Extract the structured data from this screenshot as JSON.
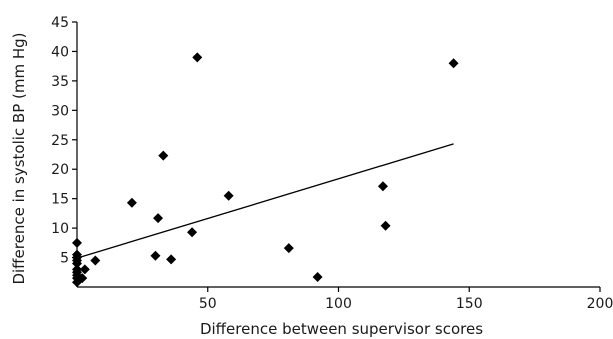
{
  "chart_data": {
    "type": "scatter",
    "title": "",
    "xlabel": "Difference between supervisor scores",
    "ylabel": "Difference in systolic BP (mm Hg)",
    "xlim": [
      0,
      200
    ],
    "ylim": [
      0,
      45
    ],
    "xticks": [
      50,
      100,
      150,
      200
    ],
    "yticks": [
      5,
      10,
      15,
      20,
      25,
      30,
      35,
      40,
      45
    ],
    "grid": false,
    "legend": "none",
    "marker": "diamond",
    "color": "#000000",
    "points": [
      {
        "x": 0,
        "y": 7.5
      },
      {
        "x": 0,
        "y": 5.5
      },
      {
        "x": 0,
        "y": 5.0
      },
      {
        "x": 0,
        "y": 4.5
      },
      {
        "x": 0,
        "y": 4.0
      },
      {
        "x": 0,
        "y": 3.0
      },
      {
        "x": 0,
        "y": 2.5
      },
      {
        "x": 0,
        "y": 2.0
      },
      {
        "x": 0,
        "y": 1.5
      },
      {
        "x": 0,
        "y": 0.8
      },
      {
        "x": 2,
        "y": 1.5
      },
      {
        "x": 3,
        "y": 3.0
      },
      {
        "x": 7,
        "y": 4.5
      },
      {
        "x": 21,
        "y": 14.3
      },
      {
        "x": 30,
        "y": 5.3
      },
      {
        "x": 31,
        "y": 11.7
      },
      {
        "x": 33,
        "y": 22.3
      },
      {
        "x": 36,
        "y": 4.7
      },
      {
        "x": 44,
        "y": 9.3
      },
      {
        "x": 46,
        "y": 39.0
      },
      {
        "x": 58,
        "y": 15.5
      },
      {
        "x": 81,
        "y": 6.6
      },
      {
        "x": 92,
        "y": 1.7
      },
      {
        "x": 117,
        "y": 17.1
      },
      {
        "x": 118,
        "y": 10.4
      },
      {
        "x": 144,
        "y": 38.0
      }
    ],
    "trendline": {
      "x": [
        0,
        144
      ],
      "y": [
        4.9,
        24.3
      ]
    }
  }
}
